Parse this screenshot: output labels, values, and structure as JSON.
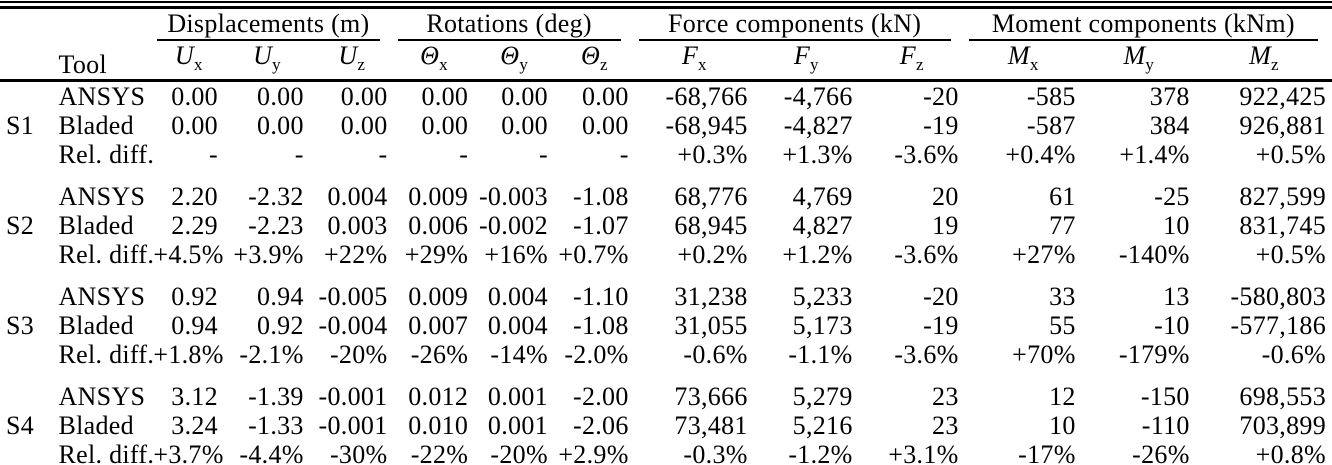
{
  "colors": {
    "background": "#ffffff",
    "text": "#000000",
    "rule": "#000000"
  },
  "header": {
    "tool_label": "Tool",
    "groups": [
      {
        "label": "Displacements (m)"
      },
      {
        "label": "Rotations (deg)"
      },
      {
        "label": "Force components (kN)"
      },
      {
        "label": "Moment components (kNm)"
      }
    ],
    "columns": [
      {
        "key": "u-x",
        "base": "U",
        "sub": "x"
      },
      {
        "key": "u-y",
        "base": "U",
        "sub": "y"
      },
      {
        "key": "u-z",
        "base": "U",
        "sub": "z"
      },
      {
        "key": "theta-x",
        "base": "Θ",
        "sub": "x"
      },
      {
        "key": "theta-y",
        "base": "Θ",
        "sub": "y"
      },
      {
        "key": "theta-z",
        "base": "Θ",
        "sub": "z"
      },
      {
        "key": "f-x",
        "base": "F",
        "sub": "x"
      },
      {
        "key": "f-y",
        "base": "F",
        "sub": "y"
      },
      {
        "key": "f-z",
        "base": "F",
        "sub": "z"
      },
      {
        "key": "m-x",
        "base": "M",
        "sub": "x"
      },
      {
        "key": "m-y",
        "base": "M",
        "sub": "y"
      },
      {
        "key": "m-z",
        "base": "M",
        "sub": "z"
      }
    ]
  },
  "sections": [
    {
      "id": "S1",
      "rows": [
        {
          "tool": "ANSYS",
          "values": [
            "0.00",
            "0.00",
            "0.00",
            "0.00",
            "0.00",
            "0.00",
            "-68,766",
            "-4,766",
            "-20",
            "-585",
            "378",
            "922,425"
          ]
        },
        {
          "tool": "Bladed",
          "values": [
            "0.00",
            "0.00",
            "0.00",
            "0.00",
            "0.00",
            "0.00",
            "-68,945",
            "-4,827",
            "-19",
            "-587",
            "384",
            "926,881"
          ]
        },
        {
          "tool": "Rel. diff.",
          "values": [
            "-",
            "-",
            "-",
            "-",
            "-",
            "-",
            "+0.3%",
            "+1.3%",
            "-3.6%",
            "+0.4%",
            "+1.4%",
            "+0.5%"
          ]
        }
      ]
    },
    {
      "id": "S2",
      "rows": [
        {
          "tool": "ANSYS",
          "values": [
            "2.20",
            "-2.32",
            "0.004",
            "0.009",
            "-0.003",
            "-1.08",
            "68,776",
            "4,769",
            "20",
            "61",
            "-25",
            "827,599"
          ]
        },
        {
          "tool": "Bladed",
          "values": [
            "2.29",
            "-2.23",
            "0.003",
            "0.006",
            "-0.002",
            "-1.07",
            "68,945",
            "4,827",
            "19",
            "77",
            "10",
            "831,745"
          ]
        },
        {
          "tool": "Rel. diff.",
          "values": [
            "+4.5%",
            "+3.9%",
            "+22%",
            "+29%",
            "+16%",
            "+0.7%",
            "+0.2%",
            "+1.2%",
            "-3.6%",
            "+27%",
            "-140%",
            "+0.5%"
          ]
        }
      ]
    },
    {
      "id": "S3",
      "rows": [
        {
          "tool": "ANSYS",
          "values": [
            "0.92",
            "0.94",
            "-0.005",
            "0.009",
            "0.004",
            "-1.10",
            "31,238",
            "5,233",
            "-20",
            "33",
            "13",
            "-580,803"
          ]
        },
        {
          "tool": "Bladed",
          "values": [
            "0.94",
            "0.92",
            "-0.004",
            "0.007",
            "0.004",
            "-1.08",
            "31,055",
            "5,173",
            "-19",
            "55",
            "-10",
            "-577,186"
          ]
        },
        {
          "tool": "Rel. diff.",
          "values": [
            "+1.8%",
            "-2.1%",
            "-20%",
            "-26%",
            "-14%",
            "-2.0%",
            "-0.6%",
            "-1.1%",
            "-3.6%",
            "+70%",
            "-179%",
            "-0.6%"
          ]
        }
      ]
    },
    {
      "id": "S4",
      "rows": [
        {
          "tool": "ANSYS",
          "values": [
            "3.12",
            "-1.39",
            "-0.001",
            "0.012",
            "0.001",
            "-2.00",
            "73,666",
            "5,279",
            "23",
            "12",
            "-150",
            "698,553"
          ]
        },
        {
          "tool": "Bladed",
          "values": [
            "3.24",
            "-1.33",
            "-0.001",
            "0.010",
            "0.001",
            "-2.06",
            "73,481",
            "5,216",
            "23",
            "10",
            "-110",
            "703,899"
          ]
        },
        {
          "tool": "Rel. diff.",
          "values": [
            "+3.7%",
            "-4.4%",
            "-30%",
            "-22%",
            "-20%",
            "+2.9%",
            "-0.3%",
            "-1.2%",
            "+3.1%",
            "-17%",
            "-26%",
            "+0.8%"
          ]
        }
      ]
    }
  ]
}
